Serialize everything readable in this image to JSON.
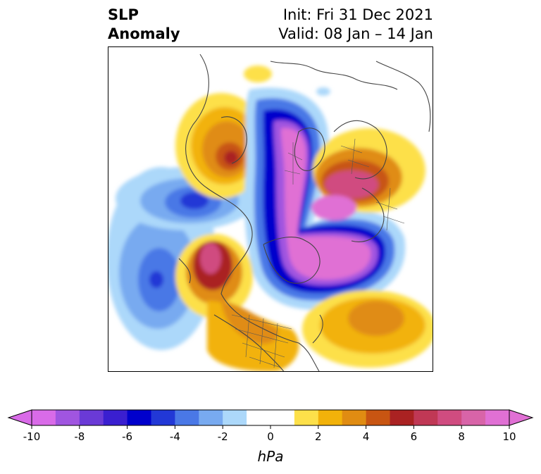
{
  "title": {
    "left_line1": "SLP",
    "left_line2": "Anomaly",
    "right_line1": "Init: Fri 31 Dec 2021",
    "right_line2": "Valid: 08 Jan – 14 Jan"
  },
  "colorbar": {
    "unit": "hPa",
    "tick_labels": [
      "-10",
      "-8",
      "-6",
      "-4",
      "-2",
      "0",
      "2",
      "4",
      "6",
      "8",
      "10"
    ],
    "colors": [
      "#d96be8",
      "#a055e0",
      "#6a3ad6",
      "#3a1fd0",
      "#0000cc",
      "#2238d6",
      "#4a78e6",
      "#78aaf0",
      "#acd8fa",
      "#ffffff",
      "#ffffff",
      "#fde04a",
      "#f2b20a",
      "#e08c12",
      "#c85512",
      "#aa2222",
      "#c03855",
      "#d04c80",
      "#d864a8",
      "#e070d4"
    ],
    "extend": "both"
  }
}
